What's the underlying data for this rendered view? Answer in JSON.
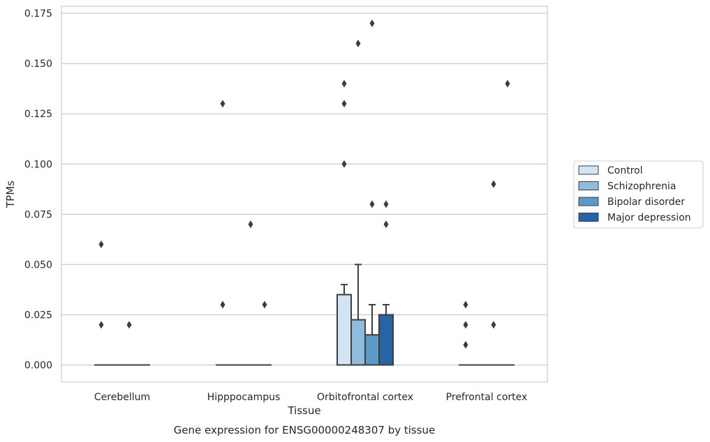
{
  "chart_data": {
    "type": "box",
    "title": "Gene expression for ENSG00000248307 by tissue",
    "xlabel": "Tissue",
    "ylabel": "TPMs",
    "ylim": [
      -0.0085,
      0.1785
    ],
    "yticks": [
      "0.000",
      "0.025",
      "0.050",
      "0.075",
      "0.100",
      "0.125",
      "0.150",
      "0.175"
    ],
    "grid": "horizontal",
    "legend_position": "right",
    "categories": [
      "Cerebellum",
      "Hipppocampus",
      "Orbitofrontal cortex",
      "Prefrontal cortex"
    ],
    "series": [
      {
        "name": "Control",
        "color": "#d3e4f3",
        "boxes": [
          {
            "q1": 0,
            "median": 0,
            "q3": 0,
            "whisker_low": 0,
            "whisker_high": 0,
            "outliers": [
              0.06,
              0.02
            ]
          },
          {
            "q1": 0,
            "median": 0,
            "q3": 0,
            "whisker_low": 0,
            "whisker_high": 0,
            "outliers": [
              0.03,
              0.13
            ]
          },
          {
            "q1": 0,
            "median": 0,
            "q3": 0.035,
            "whisker_low": 0,
            "whisker_high": 0.04,
            "outliers": [
              0.1,
              0.13,
              0.14
            ]
          },
          {
            "q1": 0,
            "median": 0,
            "q3": 0,
            "whisker_low": 0,
            "whisker_high": 0,
            "outliers": [
              0.01,
              0.02,
              0.03
            ]
          }
        ]
      },
      {
        "name": "Schizophrenia",
        "color": "#8fbcdb",
        "boxes": [
          {
            "q1": 0,
            "median": 0,
            "q3": 0,
            "whisker_low": 0,
            "whisker_high": 0,
            "outliers": []
          },
          {
            "q1": 0,
            "median": 0,
            "q3": 0,
            "whisker_low": 0,
            "whisker_high": 0,
            "outliers": []
          },
          {
            "q1": 0,
            "median": 0,
            "q3": 0.0225,
            "whisker_low": 0,
            "whisker_high": 0.05,
            "outliers": [
              0.16
            ]
          },
          {
            "q1": 0,
            "median": 0,
            "q3": 0,
            "whisker_low": 0,
            "whisker_high": 0,
            "outliers": []
          }
        ]
      },
      {
        "name": "Bipolar disorder",
        "color": "#5a9ac6",
        "boxes": [
          {
            "q1": 0,
            "median": 0,
            "q3": 0,
            "whisker_low": 0,
            "whisker_high": 0,
            "outliers": [
              0.02
            ]
          },
          {
            "q1": 0,
            "median": 0,
            "q3": 0,
            "whisker_low": 0,
            "whisker_high": 0,
            "outliers": [
              0.07
            ]
          },
          {
            "q1": 0,
            "median": 0,
            "q3": 0.015,
            "whisker_low": 0,
            "whisker_high": 0.03,
            "outliers": [
              0.08,
              0.17
            ]
          },
          {
            "q1": 0,
            "median": 0,
            "q3": 0,
            "whisker_low": 0,
            "whisker_high": 0,
            "outliers": [
              0.02,
              0.09
            ]
          }
        ]
      },
      {
        "name": "Major depression",
        "color": "#2764a4",
        "boxes": [
          {
            "q1": 0,
            "median": 0,
            "q3": 0,
            "whisker_low": 0,
            "whisker_high": 0,
            "outliers": []
          },
          {
            "q1": 0,
            "median": 0,
            "q3": 0,
            "whisker_low": 0,
            "whisker_high": 0,
            "outliers": [
              0.03
            ]
          },
          {
            "q1": 0,
            "median": 0,
            "q3": 0.025,
            "whisker_low": 0,
            "whisker_high": 0.03,
            "outliers": [
              0.07,
              0.08
            ]
          },
          {
            "q1": 0,
            "median": 0,
            "q3": 0,
            "whisker_low": 0,
            "whisker_high": 0,
            "outliers": [
              0.14
            ]
          }
        ]
      }
    ]
  }
}
